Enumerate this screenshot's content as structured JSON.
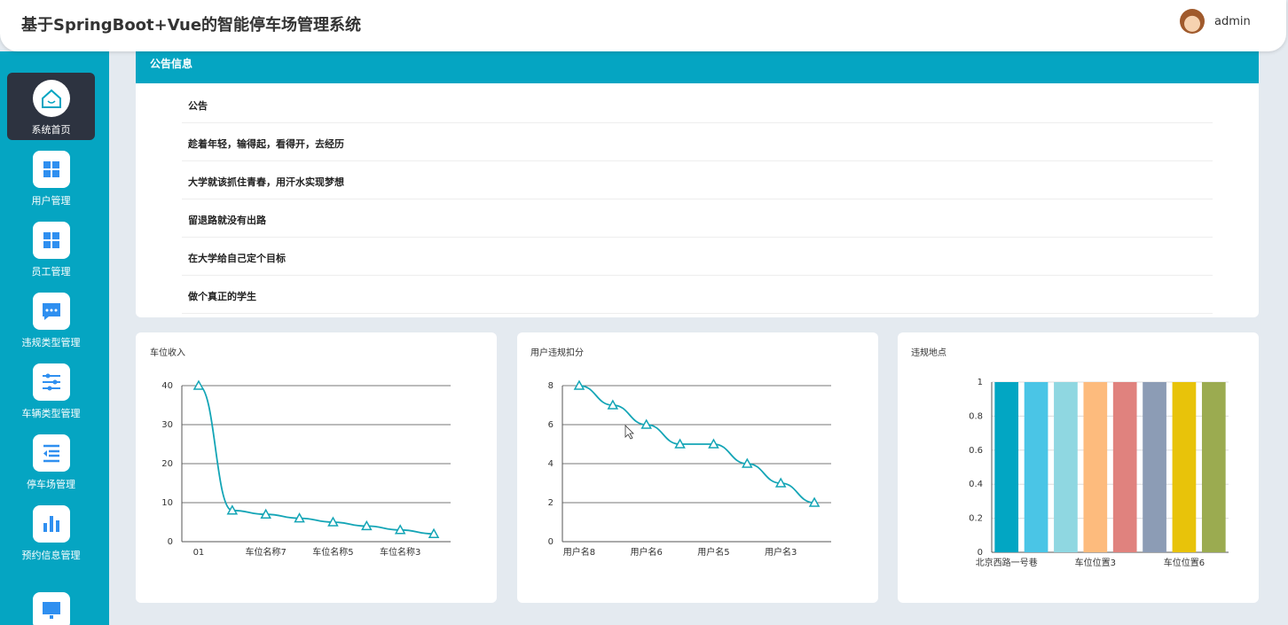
{
  "header": {
    "title": "基于SpringBoot+Vue的智能停车场管理系统",
    "user": "admin"
  },
  "sidebar": [
    "系统首页",
    "用户管理",
    "员工管理",
    "违规类型管理",
    "车辆类型管理",
    "停车场管理",
    "预约信息管理"
  ],
  "notice": {
    "title": "公告信息",
    "items": [
      "公告",
      "趁着年轻，输得起，看得开，去经历",
      "大学就该抓住青春，用汗水实现梦想",
      "留退路就没有出路",
      "在大学给自己定个目标",
      "做个真正的学生"
    ]
  },
  "chart_data": [
    {
      "type": "line",
      "title": "车位收入",
      "categories": [
        "01",
        null,
        "车位名称7",
        null,
        "车位名称5",
        null,
        "车位名称3",
        null
      ],
      "values": [
        40,
        8,
        7,
        6,
        5,
        4,
        3,
        2
      ],
      "color": "#14a5b6",
      "ylim": [
        0,
        40
      ],
      "yticks": [
        0,
        10,
        20,
        30,
        40
      ],
      "grid": true,
      "smooth": true,
      "marker": "triangle"
    },
    {
      "type": "line",
      "title": "用户违规扣分",
      "categories": [
        "用户名8",
        null,
        "用户名6",
        null,
        "用户名5",
        null,
        "用户名3",
        null
      ],
      "values": [
        8,
        7,
        6,
        5,
        5,
        4,
        3,
        2
      ],
      "color": "#14a5b6",
      "ylim": [
        0,
        8
      ],
      "yticks": [
        0,
        2,
        4,
        6,
        8
      ],
      "grid": true,
      "smooth": true,
      "marker": "triangle"
    },
    {
      "type": "bar",
      "title": "违规地点",
      "categories": [
        "北京西路一号巷",
        null,
        null,
        "车位位置3",
        null,
        null,
        "车位位置6",
        null
      ],
      "values": [
        1,
        1,
        1,
        1,
        1,
        1,
        1,
        1
      ],
      "colors": [
        "#02a6c3",
        "#4ac5e6",
        "#8fd7e1",
        "#fdbb7d",
        "#e0827e",
        "#8c9cb5",
        "#e8c30a",
        "#9bab50"
      ],
      "ylim": [
        0,
        1
      ],
      "yticks": [
        0,
        0.2,
        0.4,
        0.6,
        0.8,
        1
      ],
      "grid": true
    }
  ]
}
